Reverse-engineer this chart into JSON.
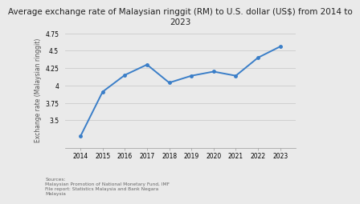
{
  "title": "Average exchange rate of Malaysian ringgit (RM) to U.S. dollar (US$) from 2014 to\n2023",
  "years": [
    2014,
    2015,
    2016,
    2017,
    2018,
    2019,
    2020,
    2021,
    2022,
    2023
  ],
  "values": [
    3.27,
    3.91,
    4.15,
    4.3,
    4.04,
    4.14,
    4.2,
    4.14,
    4.4,
    4.56
  ],
  "ylabel": "Exchange rate (Malaysian ringgit)",
  "ylim": [
    3.1,
    4.78
  ],
  "yticks": [
    3.5,
    3.75,
    4.0,
    4.25,
    4.5,
    4.75
  ],
  "ytick_labels": [
    "3.5",
    "3.75",
    "4",
    "4.25",
    "4.5",
    "4.75"
  ],
  "line_color": "#3a7ec8",
  "marker_color": "#3a7ec8",
  "bg_color": "#eaeaea",
  "plot_bg_color": "#eaeaea",
  "grid_color": "#cccccc",
  "source_text": "Sources:\nMalaysian Promotion of National Monetary Fund, IMF\nFile report: Statistics Malaysia and Bank Negara\nMalaysia",
  "title_fontsize": 7.5,
  "label_fontsize": 5.5,
  "tick_fontsize": 5.5,
  "source_fontsize": 4.2
}
